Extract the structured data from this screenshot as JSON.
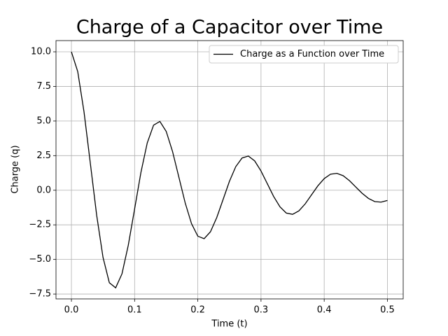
{
  "chart_data": {
    "type": "line",
    "title": "Charge of a Capacitor over Time",
    "x_label": "Time (t)",
    "y_label": "Charge (q)",
    "x": [
      0,
      0.01,
      0.02,
      0.03,
      0.04,
      0.05,
      0.06,
      0.07,
      0.08,
      0.09,
      0.1,
      0.11,
      0.12,
      0.13,
      0.14,
      0.15,
      0.16,
      0.17,
      0.18,
      0.19,
      0.2,
      0.21,
      0.22,
      0.23,
      0.24,
      0.25,
      0.26,
      0.27,
      0.28,
      0.29,
      0.3,
      0.31,
      0.32,
      0.33,
      0.34,
      0.35,
      0.36,
      0.37,
      0.38,
      0.39,
      0.4,
      0.41,
      0.42,
      0.43,
      0.44,
      0.45,
      0.46,
      0.47,
      0.48,
      0.49,
      0.5
    ],
    "series": [
      {
        "name": "Charge as a Function over Time",
        "color": "#000000",
        "values": [
          10,
          8.57,
          5.64,
          1.92,
          -1.82,
          -4.85,
          -6.68,
          -7.05,
          -6.04,
          -3.97,
          -1.35,
          1.29,
          3.42,
          4.7,
          4.97,
          4.25,
          2.8,
          0.95,
          -0.91,
          -2.41,
          -3.32,
          -3.5,
          -3.0,
          -1.97,
          -0.67,
          0.64,
          1.7,
          2.33,
          2.47,
          2.12,
          1.39,
          0.47,
          -0.45,
          -1.2,
          -1.65,
          -1.74,
          -1.49,
          -0.98,
          -0.33,
          0.32,
          0.84,
          1.16,
          1.22,
          1.05,
          0.69,
          0.23,
          -0.22,
          -0.59,
          -0.82,
          -0.86,
          -0.74
        ]
      }
    ],
    "xlim": [
      -0.0244,
      0.525
    ],
    "ylim": [
      -7.85,
      10.81
    ],
    "xticks": [
      {
        "value": 0,
        "label": "0.0"
      },
      0.1,
      0.2,
      0.3,
      0.4,
      0.5
    ],
    "yticks": [
      {
        "value": -7.5,
        "label": "−7.5"
      },
      {
        "value": -5,
        "label": "−5.0"
      },
      {
        "value": -2.5,
        "label": "−2.5"
      },
      {
        "value": 0,
        "label": "0.0"
      },
      2.5,
      {
        "value": 5,
        "label": "5.0"
      },
      7.5,
      {
        "value": 10,
        "label": "10.0"
      }
    ],
    "grid": true,
    "legend": "upper-right"
  }
}
